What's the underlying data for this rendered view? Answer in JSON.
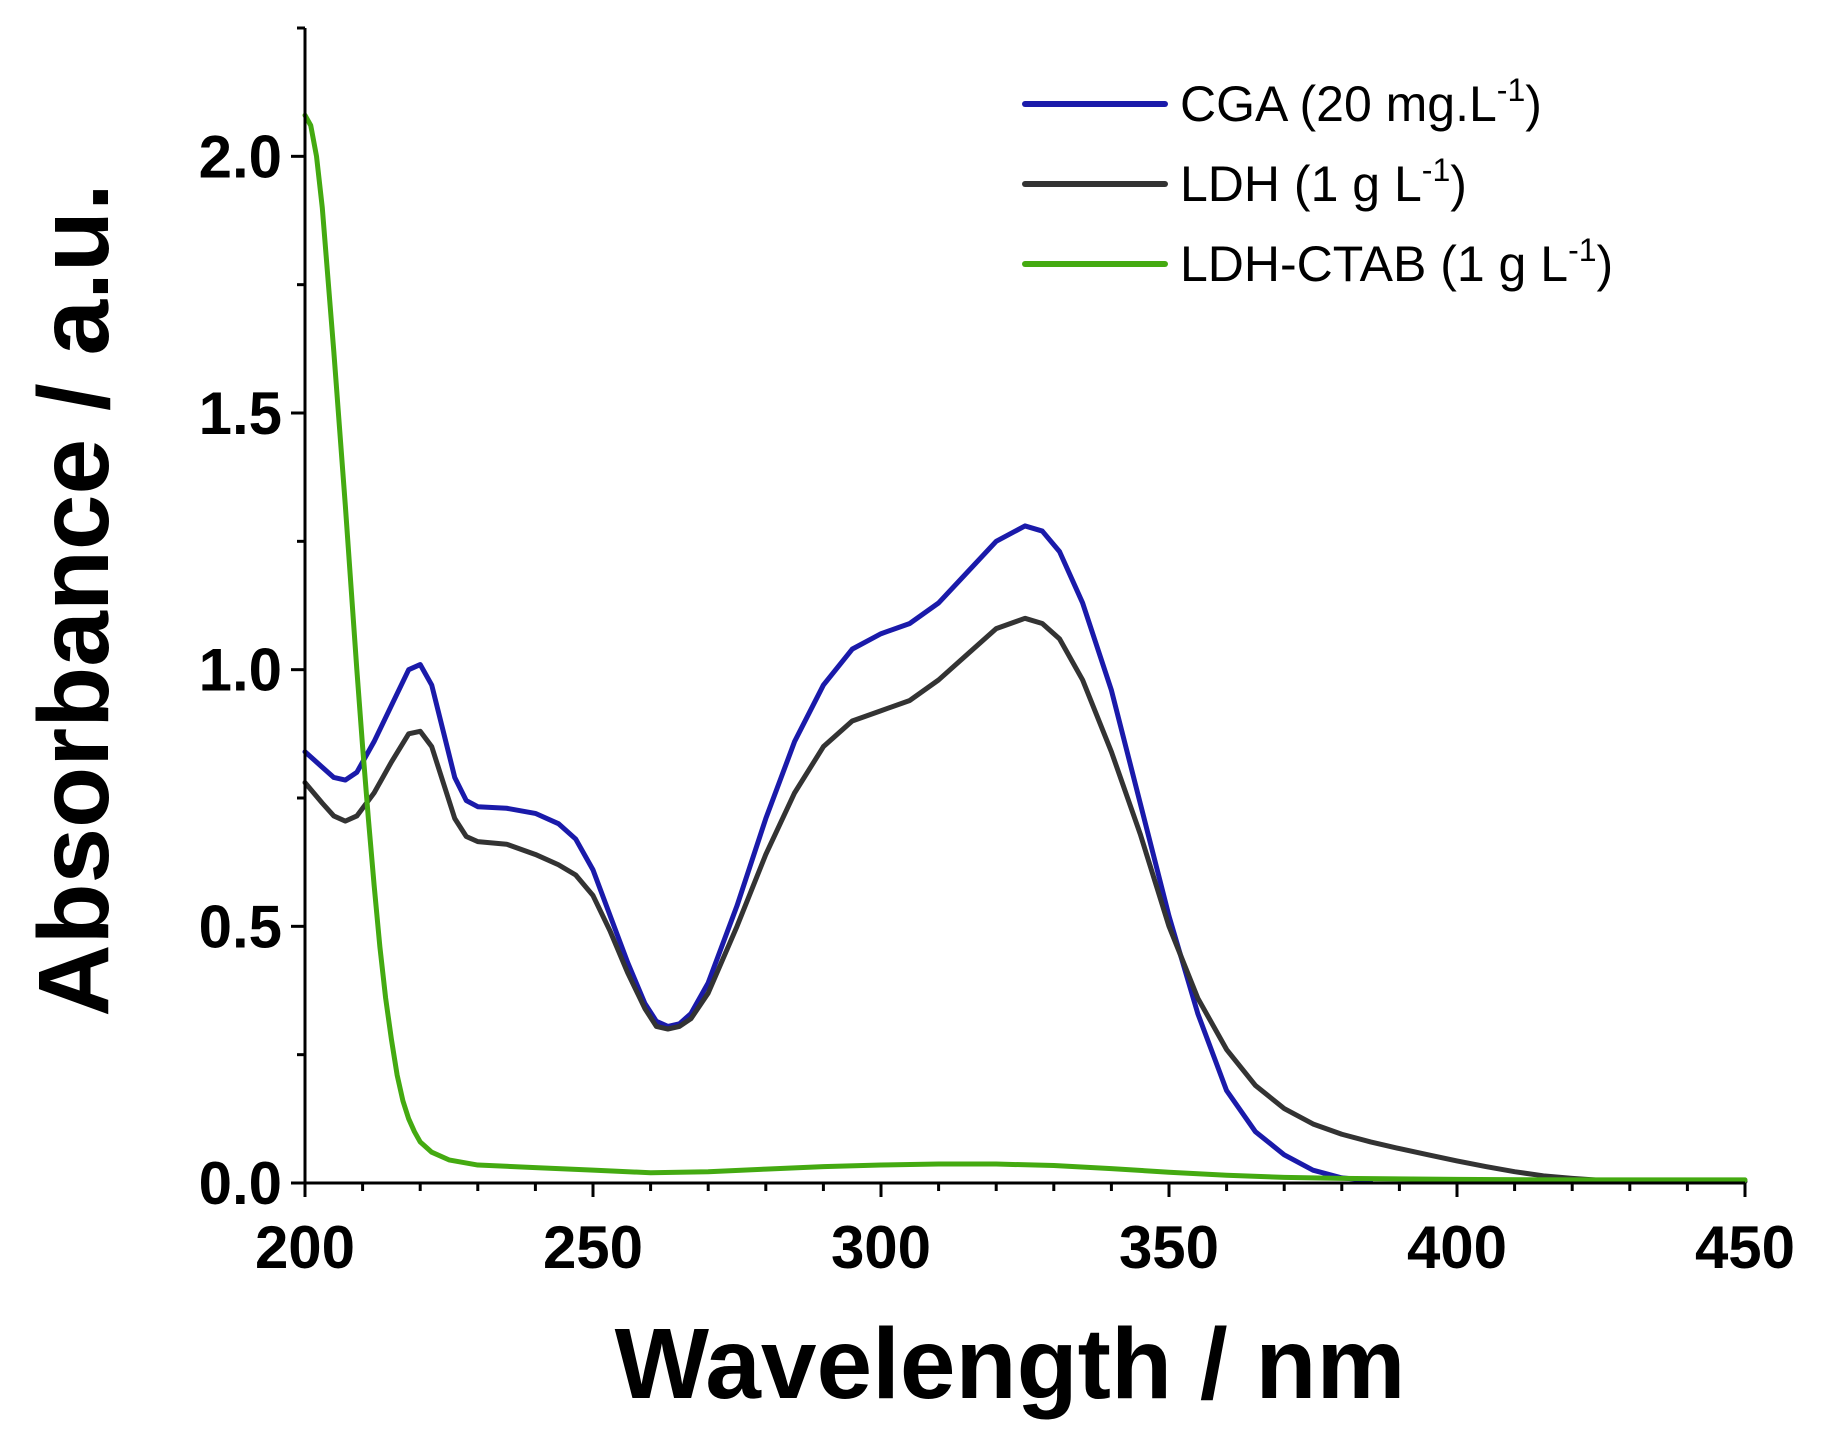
{
  "chart_data": {
    "type": "line",
    "title": "",
    "xlabel": "Wavelength / nm",
    "ylabel": "Absorbance / a.u.",
    "xlim": [
      200,
      450
    ],
    "ylim": [
      0,
      2.25
    ],
    "x_ticks": [
      200,
      250,
      300,
      350,
      400,
      450
    ],
    "x_tick_labels": [
      "200",
      "250",
      "300",
      "350",
      "400",
      "450"
    ],
    "y_ticks": [
      0.0,
      0.5,
      1.0,
      1.5,
      2.0
    ],
    "y_tick_labels": [
      "0.0",
      "0.5",
      "1.0",
      "1.5",
      "2.0"
    ],
    "x_minor_step": 10,
    "y_minor_step": 0.25,
    "grid": false,
    "legend_position": "top-right",
    "series": [
      {
        "name": "CGA",
        "legend_prefix": "CGA (20 mg.L",
        "legend_sup": "-1",
        "legend_suffix": ")",
        "color": "#1a1aaa",
        "points": [
          [
            200,
            0.84
          ],
          [
            203,
            0.81
          ],
          [
            205,
            0.79
          ],
          [
            207,
            0.785
          ],
          [
            209,
            0.8
          ],
          [
            212,
            0.86
          ],
          [
            215,
            0.93
          ],
          [
            218,
            1.0
          ],
          [
            220,
            1.01
          ],
          [
            222,
            0.97
          ],
          [
            224,
            0.88
          ],
          [
            226,
            0.79
          ],
          [
            228,
            0.745
          ],
          [
            230,
            0.733
          ],
          [
            235,
            0.73
          ],
          [
            240,
            0.72
          ],
          [
            244,
            0.7
          ],
          [
            247,
            0.67
          ],
          [
            250,
            0.61
          ],
          [
            253,
            0.52
          ],
          [
            256,
            0.43
          ],
          [
            259,
            0.35
          ],
          [
            261,
            0.315
          ],
          [
            263,
            0.305
          ],
          [
            265,
            0.31
          ],
          [
            267,
            0.33
          ],
          [
            270,
            0.39
          ],
          [
            275,
            0.54
          ],
          [
            280,
            0.71
          ],
          [
            285,
            0.86
          ],
          [
            290,
            0.97
          ],
          [
            295,
            1.04
          ],
          [
            300,
            1.07
          ],
          [
            305,
            1.09
          ],
          [
            310,
            1.13
          ],
          [
            315,
            1.19
          ],
          [
            320,
            1.25
          ],
          [
            325,
            1.28
          ],
          [
            328,
            1.27
          ],
          [
            331,
            1.23
          ],
          [
            335,
            1.13
          ],
          [
            340,
            0.96
          ],
          [
            345,
            0.74
          ],
          [
            350,
            0.52
          ],
          [
            355,
            0.33
          ],
          [
            360,
            0.18
          ],
          [
            365,
            0.1
          ],
          [
            370,
            0.055
          ],
          [
            375,
            0.025
          ],
          [
            380,
            0.01
          ],
          [
            385,
            0.005
          ]
        ]
      },
      {
        "name": "LDH",
        "legend_prefix": "LDH (1 g L",
        "legend_sup": "-1",
        "legend_suffix": ")",
        "color": "#333333",
        "points": [
          [
            200,
            0.78
          ],
          [
            203,
            0.74
          ],
          [
            205,
            0.715
          ],
          [
            207,
            0.705
          ],
          [
            209,
            0.715
          ],
          [
            212,
            0.76
          ],
          [
            215,
            0.82
          ],
          [
            218,
            0.875
          ],
          [
            220,
            0.88
          ],
          [
            222,
            0.85
          ],
          [
            224,
            0.78
          ],
          [
            226,
            0.71
          ],
          [
            228,
            0.675
          ],
          [
            230,
            0.665
          ],
          [
            235,
            0.66
          ],
          [
            240,
            0.64
          ],
          [
            244,
            0.62
          ],
          [
            247,
            0.6
          ],
          [
            250,
            0.56
          ],
          [
            253,
            0.49
          ],
          [
            256,
            0.41
          ],
          [
            259,
            0.34
          ],
          [
            261,
            0.305
          ],
          [
            263,
            0.3
          ],
          [
            265,
            0.305
          ],
          [
            267,
            0.32
          ],
          [
            270,
            0.37
          ],
          [
            275,
            0.5
          ],
          [
            280,
            0.64
          ],
          [
            285,
            0.76
          ],
          [
            290,
            0.85
          ],
          [
            295,
            0.9
          ],
          [
            300,
            0.92
          ],
          [
            305,
            0.94
          ],
          [
            310,
            0.98
          ],
          [
            315,
            1.03
          ],
          [
            320,
            1.08
          ],
          [
            325,
            1.1
          ],
          [
            328,
            1.09
          ],
          [
            331,
            1.06
          ],
          [
            335,
            0.98
          ],
          [
            340,
            0.84
          ],
          [
            345,
            0.68
          ],
          [
            350,
            0.5
          ],
          [
            355,
            0.36
          ],
          [
            360,
            0.26
          ],
          [
            365,
            0.19
          ],
          [
            370,
            0.145
          ],
          [
            375,
            0.115
          ],
          [
            380,
            0.095
          ],
          [
            385,
            0.08
          ],
          [
            390,
            0.067
          ],
          [
            395,
            0.055
          ],
          [
            400,
            0.043
          ],
          [
            405,
            0.032
          ],
          [
            410,
            0.022
          ],
          [
            415,
            0.014
          ],
          [
            420,
            0.009
          ],
          [
            425,
            0.005
          ],
          [
            430,
            0.004
          ],
          [
            440,
            0.003
          ],
          [
            450,
            0.003
          ]
        ]
      },
      {
        "name": "LDH-CTAB",
        "legend_prefix": "LDH-CTAB (1 g L",
        "legend_sup": "-1",
        "legend_suffix": ")",
        "color": "#44aa11",
        "points": [
          [
            200,
            2.08
          ],
          [
            201,
            2.06
          ],
          [
            202,
            2.0
          ],
          [
            203,
            1.9
          ],
          [
            204,
            1.76
          ],
          [
            205,
            1.62
          ],
          [
            206,
            1.47
          ],
          [
            207,
            1.32
          ],
          [
            208,
            1.16
          ],
          [
            209,
            1.0
          ],
          [
            210,
            0.85
          ],
          [
            211,
            0.71
          ],
          [
            212,
            0.58
          ],
          [
            213,
            0.46
          ],
          [
            214,
            0.36
          ],
          [
            215,
            0.28
          ],
          [
            216,
            0.21
          ],
          [
            217,
            0.16
          ],
          [
            218,
            0.125
          ],
          [
            219,
            0.1
          ],
          [
            220,
            0.08
          ],
          [
            222,
            0.06
          ],
          [
            225,
            0.045
          ],
          [
            230,
            0.035
          ],
          [
            240,
            0.03
          ],
          [
            250,
            0.025
          ],
          [
            260,
            0.02
          ],
          [
            270,
            0.022
          ],
          [
            280,
            0.027
          ],
          [
            290,
            0.032
          ],
          [
            300,
            0.035
          ],
          [
            310,
            0.037
          ],
          [
            320,
            0.037
          ],
          [
            330,
            0.034
          ],
          [
            340,
            0.028
          ],
          [
            350,
            0.021
          ],
          [
            360,
            0.015
          ],
          [
            370,
            0.011
          ],
          [
            380,
            0.009
          ],
          [
            400,
            0.007
          ],
          [
            420,
            0.006
          ],
          [
            450,
            0.006
          ]
        ]
      }
    ]
  }
}
